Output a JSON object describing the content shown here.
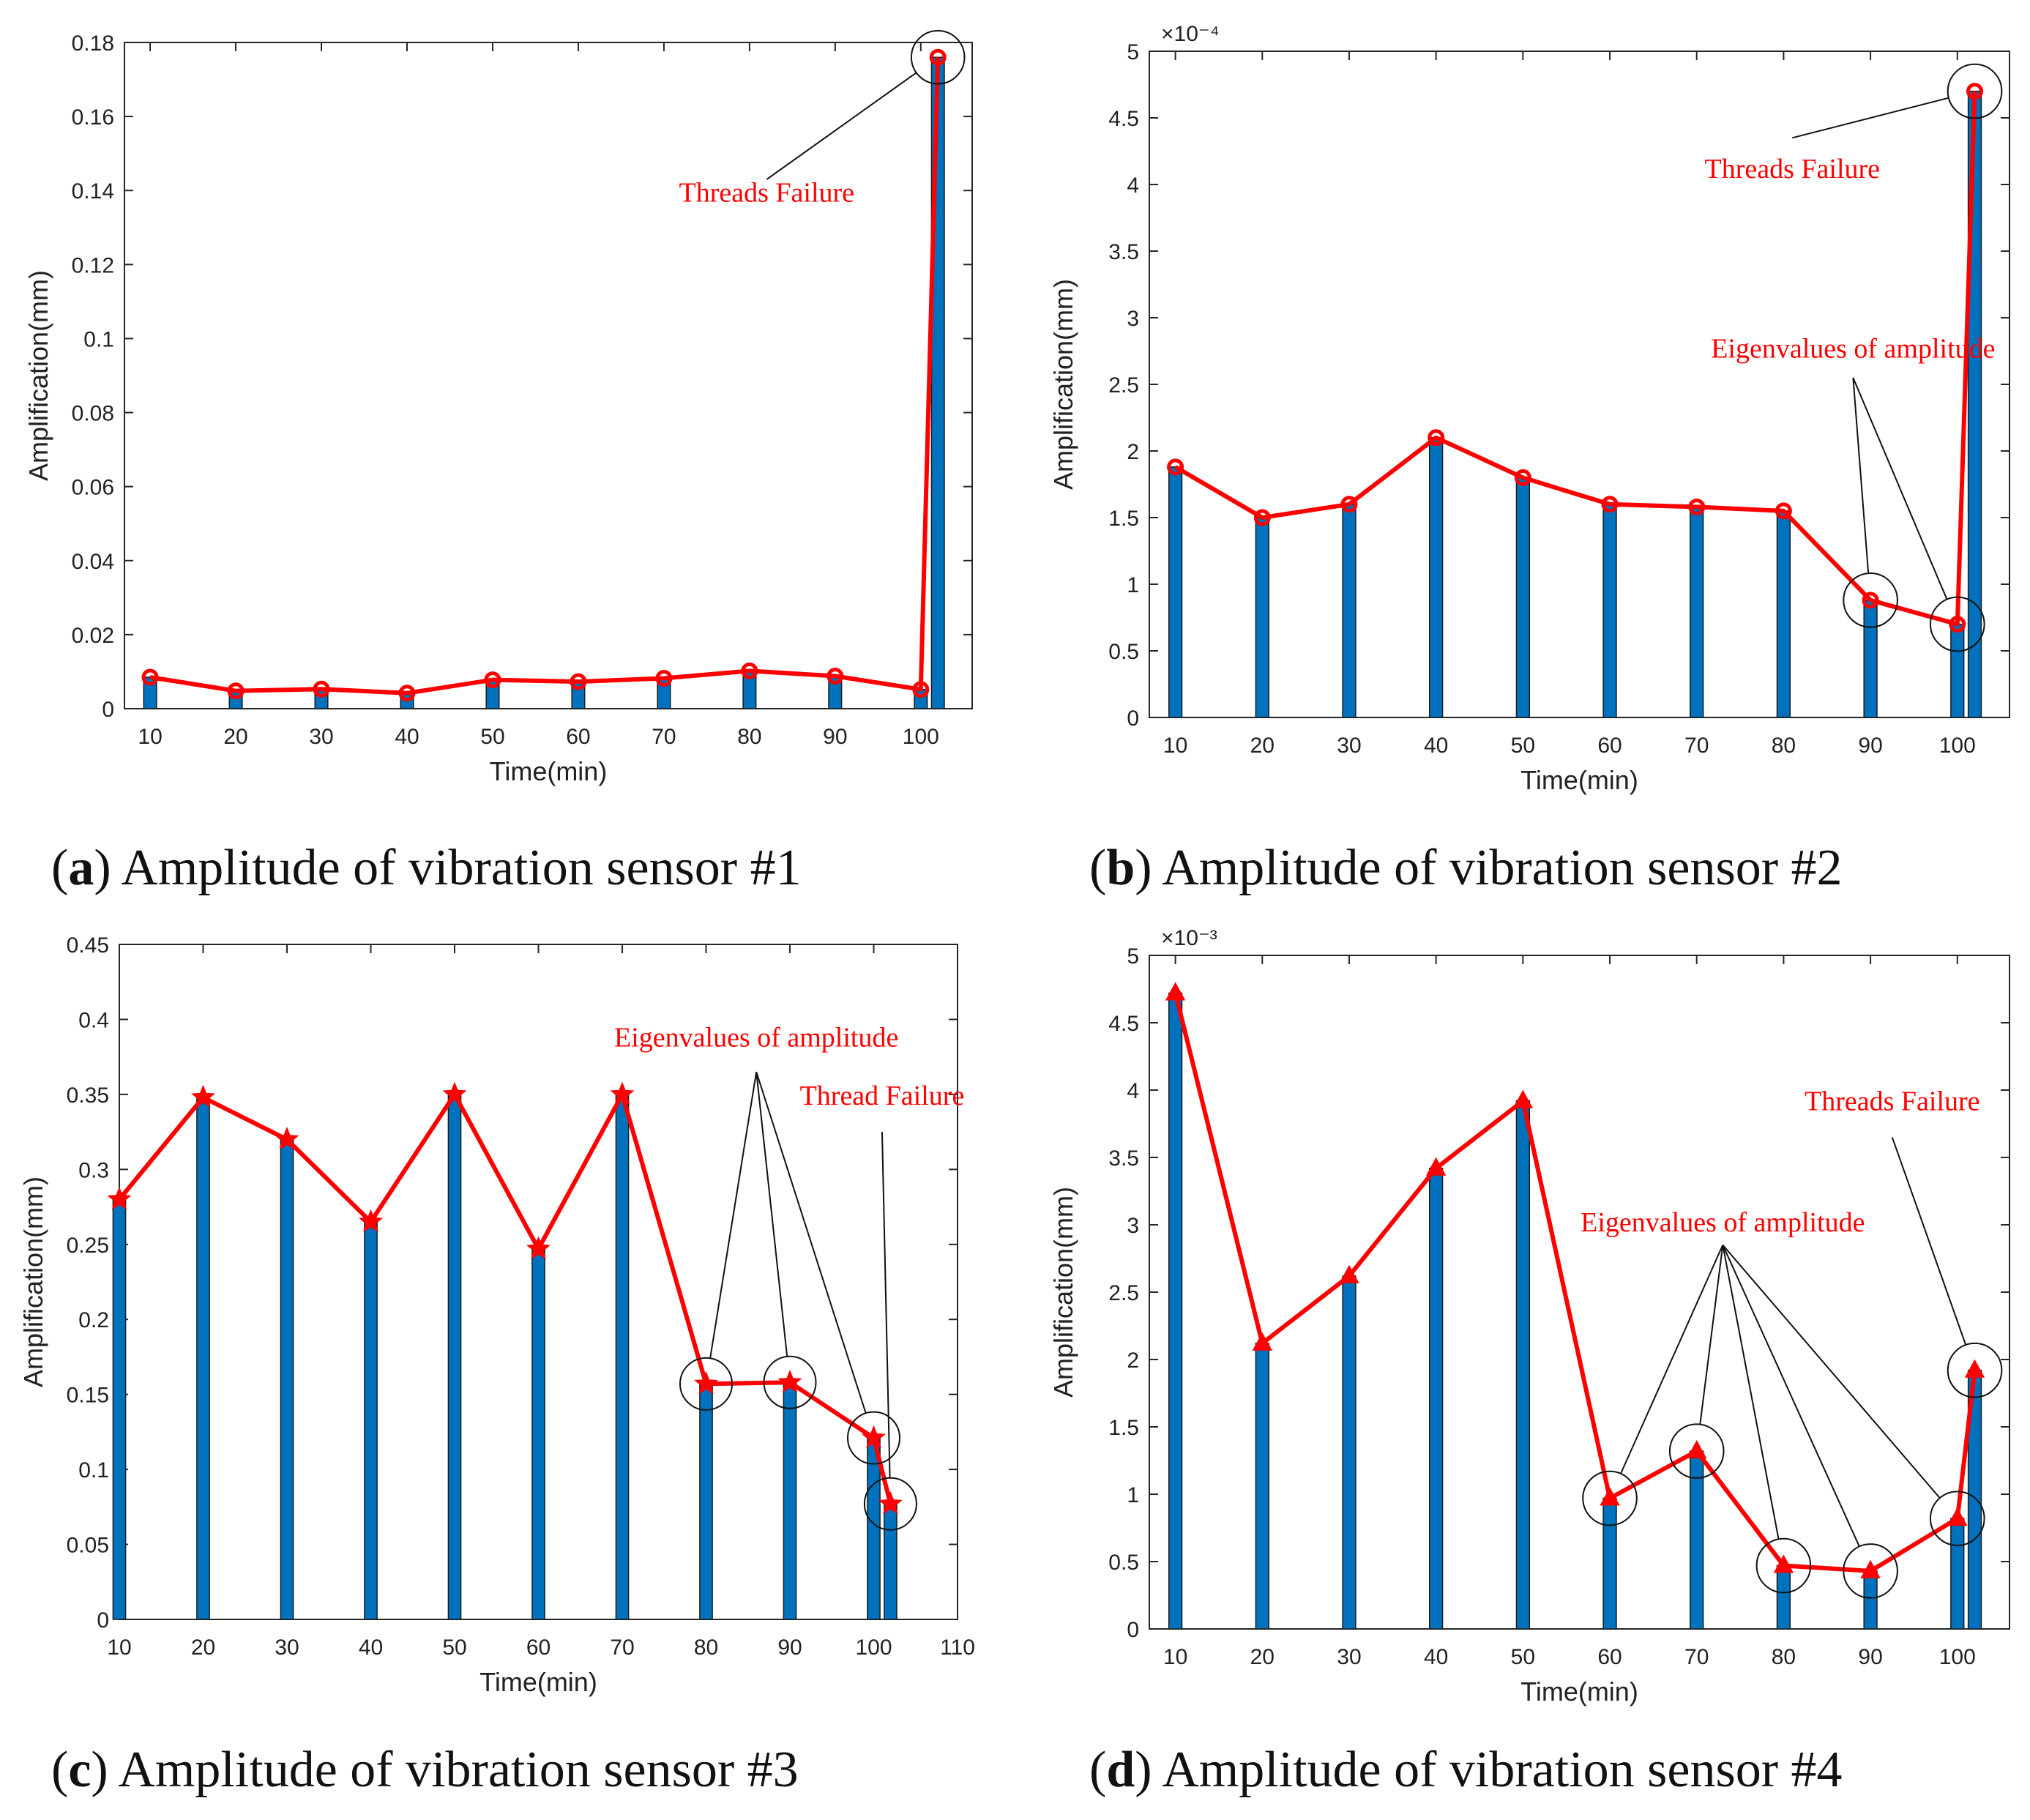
{
  "chart_data": [
    {
      "id": "a",
      "type": "bar+line",
      "caption_letter": "a",
      "caption_text": "Amplitude of vibration sensor #1",
      "xlabel": "Time(min)",
      "ylabel": "Amplification(mm)",
      "xlim": [
        7,
        106
      ],
      "ylim": [
        0,
        0.18
      ],
      "xticks": [
        10,
        20,
        30,
        40,
        50,
        60,
        70,
        80,
        90,
        100
      ],
      "xtick_labels": [
        "10",
        "20",
        "30",
        "40",
        "50",
        "60",
        "70",
        "80",
        "90",
        "100"
      ],
      "yticks": [
        0,
        0.02,
        0.04,
        0.06,
        0.08,
        0.1,
        0.12,
        0.14,
        0.16,
        0.18
      ],
      "ytick_labels": [
        "0",
        "0.02",
        "0.04",
        "0.06",
        "0.08",
        "0.1",
        "0.12",
        "0.14",
        "0.16",
        "0.18"
      ],
      "exponent_label": "",
      "marker": "circle",
      "x": [
        10,
        20,
        30,
        40,
        50,
        60,
        70,
        80,
        90,
        100,
        102
      ],
      "values": [
        0.0085,
        0.0048,
        0.0053,
        0.0042,
        0.0078,
        0.0073,
        0.0082,
        0.0102,
        0.0088,
        0.0052,
        0.176
      ],
      "circled_x": [
        102
      ],
      "annotations": [
        {
          "text": "Threads Failure",
          "anchor": "threads_failure",
          "targets_x": [
            102
          ],
          "text_x": 82,
          "text_y": 0.137,
          "line_from_y": 0.143
        }
      ]
    },
    {
      "id": "b",
      "type": "bar+line",
      "caption_letter": "b",
      "caption_text": "Amplitude of vibration sensor #2",
      "xlabel": "Time(min)",
      "ylabel": "Amplification(mm)",
      "xlim": [
        7,
        106
      ],
      "ylim": [
        0,
        5
      ],
      "xticks": [
        10,
        20,
        30,
        40,
        50,
        60,
        70,
        80,
        90,
        100
      ],
      "xtick_labels": [
        "10",
        "20",
        "30",
        "40",
        "50",
        "60",
        "70",
        "80",
        "90",
        "100"
      ],
      "yticks": [
        0,
        0.5,
        1,
        1.5,
        2,
        2.5,
        3,
        3.5,
        4,
        4.5,
        5
      ],
      "ytick_labels": [
        "0",
        "0.5",
        "1",
        "1.5",
        "2",
        "2.5",
        "3",
        "3.5",
        "4",
        "4.5",
        "5"
      ],
      "exponent_label": "×10⁻⁴",
      "marker": "circle",
      "x": [
        10,
        20,
        30,
        40,
        50,
        60,
        70,
        80,
        90,
        100,
        102
      ],
      "values": [
        1.88,
        1.5,
        1.6,
        2.1,
        1.8,
        1.6,
        1.58,
        1.55,
        0.88,
        0.7,
        4.7
      ],
      "circled_x": [
        90,
        100,
        102
      ],
      "annotations": [
        {
          "text": "Threads Failure",
          "anchor": "threads_failure",
          "targets_x": [
            102
          ],
          "text_x": 81,
          "text_y": 4.05,
          "line_from_y": 4.35
        },
        {
          "text": "Eigenvalues of amplitude",
          "anchor": "eigen",
          "targets_x": [
            90,
            100
          ],
          "text_x": 88,
          "text_y": 2.7,
          "line_from_y": 2.55
        }
      ]
    },
    {
      "id": "c",
      "type": "bar+line",
      "caption_letter": "c",
      "caption_text": "Amplitude of vibration sensor #3",
      "xlabel": "Time(min)",
      "ylabel": "Amplification(mm)",
      "xlim": [
        10,
        110
      ],
      "ylim": [
        0,
        0.45
      ],
      "xticks": [
        10,
        20,
        30,
        40,
        50,
        60,
        70,
        80,
        90,
        100,
        110
      ],
      "xtick_labels": [
        "10",
        "20",
        "30",
        "40",
        "50",
        "60",
        "70",
        "80",
        "90",
        "100",
        "110"
      ],
      "yticks": [
        0,
        0.05,
        0.1,
        0.15,
        0.2,
        0.25,
        0.3,
        0.35,
        0.4,
        0.45
      ],
      "ytick_labels": [
        "0",
        "0.05",
        "0.1",
        "0.15",
        "0.2",
        "0.25",
        "0.3",
        "0.35",
        "0.4",
        "0.45"
      ],
      "exponent_label": "",
      "marker": "star",
      "x": [
        10,
        20,
        30,
        40,
        50,
        60,
        70,
        80,
        90,
        100,
        102
      ],
      "values": [
        0.28,
        0.348,
        0.32,
        0.265,
        0.35,
        0.247,
        0.35,
        0.157,
        0.158,
        0.121,
        0.077
      ],
      "circled_x": [
        80,
        90,
        100,
        102
      ],
      "annotations": [
        {
          "text": "Eigenvalues of amplitude",
          "anchor": "eigen",
          "targets_x": [
            80,
            90,
            100
          ],
          "text_x": 86,
          "text_y": 0.382,
          "line_from_y": 0.365
        },
        {
          "text": "Thread Failure",
          "anchor": "threads_failure",
          "targets_x": [
            102
          ],
          "text_x": 101,
          "text_y": 0.343,
          "line_from_y": 0.325
        }
      ]
    },
    {
      "id": "d",
      "type": "bar+line",
      "caption_letter": "d",
      "caption_text": "Amplitude of vibration sensor #4",
      "xlabel": "Time(min)",
      "ylabel": "Amplification(mm)",
      "xlim": [
        7,
        106
      ],
      "ylim": [
        0,
        5
      ],
      "xticks": [
        10,
        20,
        30,
        40,
        50,
        60,
        70,
        80,
        90,
        100
      ],
      "xtick_labels": [
        "10",
        "20",
        "30",
        "40",
        "50",
        "60",
        "70",
        "80",
        "90",
        "100"
      ],
      "yticks": [
        0,
        0.5,
        1,
        1.5,
        2,
        2.5,
        3,
        3.5,
        4,
        4.5,
        5
      ],
      "ytick_labels": [
        "0",
        "0.5",
        "1",
        "1.5",
        "2",
        "2.5",
        "3",
        "3.5",
        "4",
        "4.5",
        "5"
      ],
      "exponent_label": "×10⁻³",
      "marker": "triangle",
      "x": [
        10,
        20,
        30,
        40,
        50,
        60,
        70,
        80,
        90,
        100,
        102
      ],
      "values": [
        4.72,
        2.12,
        2.62,
        3.42,
        3.92,
        0.97,
        1.32,
        0.47,
        0.43,
        0.82,
        1.92
      ],
      "circled_x": [
        60,
        70,
        80,
        90,
        100,
        102
      ],
      "annotations": [
        {
          "text": "Threads Failure",
          "anchor": "threads_failure",
          "targets_x": [
            102
          ],
          "text_x": 92.5,
          "text_y": 3.85,
          "line_from_y": 3.65
        },
        {
          "text": "Eigenvalues of amplitude",
          "anchor": "eigen",
          "targets_x": [
            60,
            70,
            80,
            90,
            100
          ],
          "text_x": 73,
          "text_y": 2.95,
          "line_from_y": 2.85
        }
      ]
    }
  ]
}
